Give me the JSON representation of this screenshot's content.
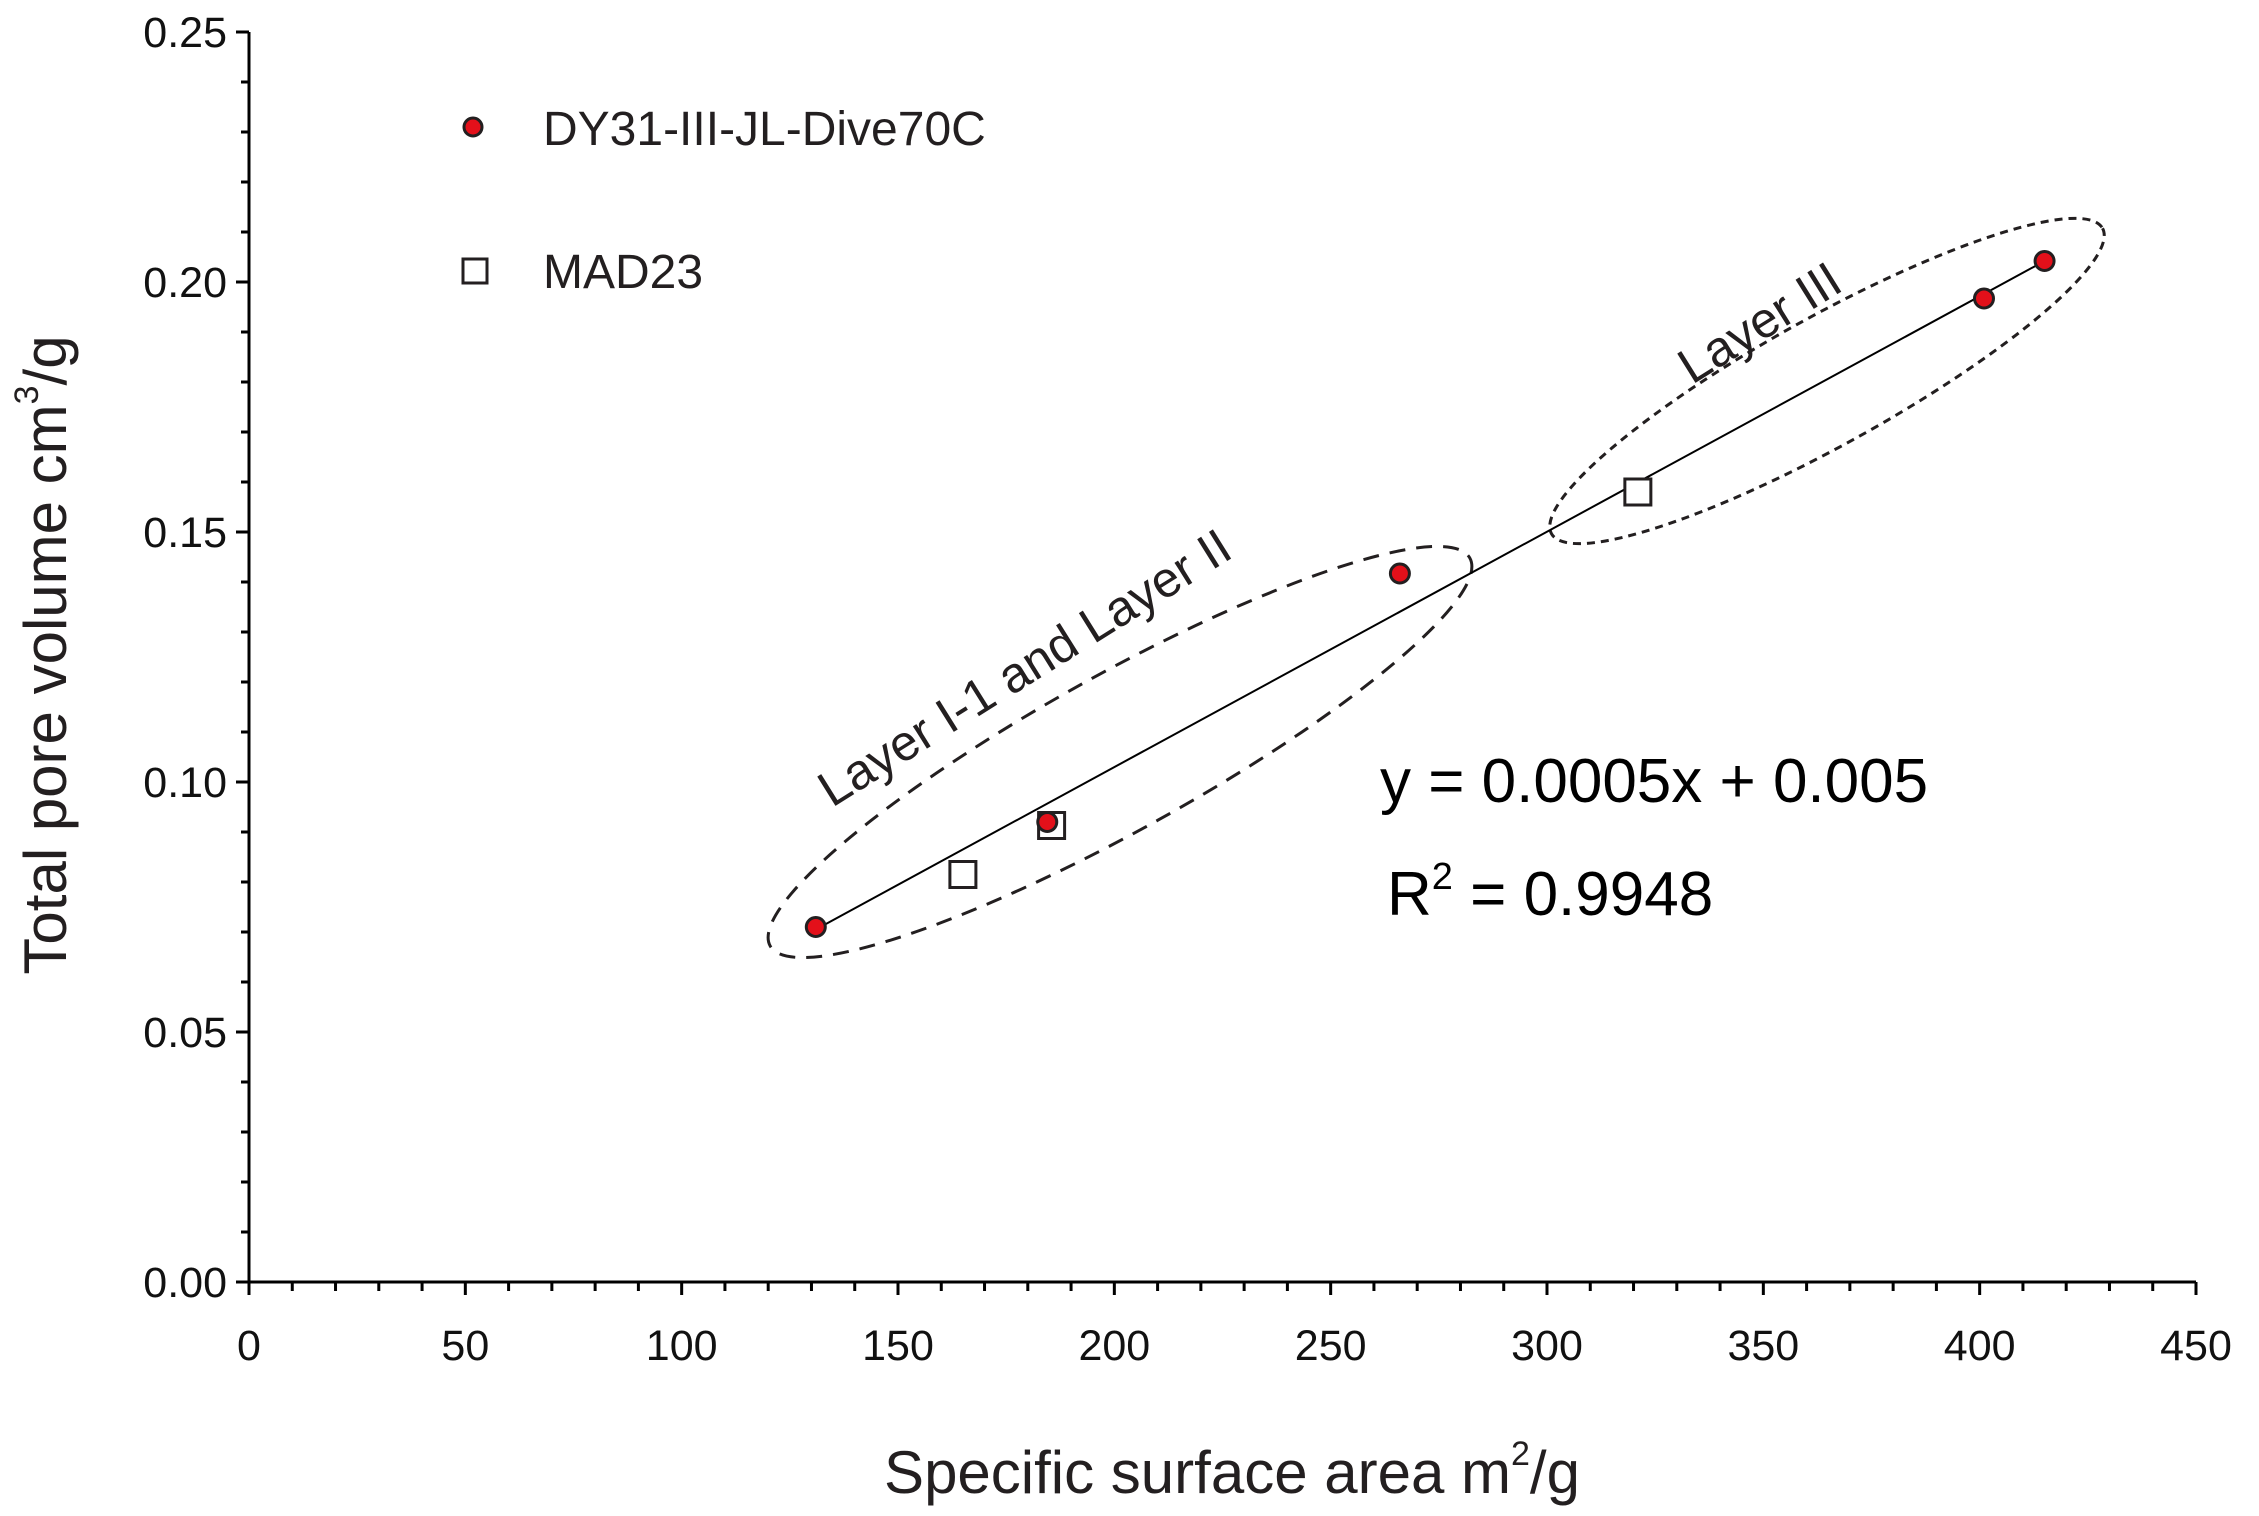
{
  "chart_data": {
    "type": "scatter",
    "title": "",
    "xlabel": "Specific surface area m",
    "xlabel_sup": "2",
    "xlabel_unit": "/g",
    "ylabel": "Total pore volume cm",
    "ylabel_sup": "3",
    "ylabel_unit": "/g",
    "xlim": [
      0,
      450
    ],
    "ylim": [
      0,
      0.25
    ],
    "xticks": [
      "0",
      "50",
      "100",
      "150",
      "200",
      "250",
      "300",
      "350",
      "400",
      "450"
    ],
    "yticks": [
      "0.00",
      "0.05",
      "0.10",
      "0.15",
      "0.20",
      "0.25"
    ],
    "grid": false,
    "legend_position": "top-left",
    "series": [
      {
        "name": "DY31-III-JL-Dive70C",
        "marker": "circle",
        "color": "#e3101a",
        "x": [
          131,
          184.5,
          266,
          401,
          415
        ],
        "y": [
          0.071,
          0.092,
          0.1417,
          0.1967,
          0.2042
        ]
      },
      {
        "name": "MAD23",
        "marker": "square",
        "color": "#ffffff",
        "x": [
          165,
          185.5,
          321
        ],
        "y": [
          0.0815,
          0.0913,
          0.158
        ]
      }
    ],
    "fit": {
      "x": [
        131,
        415
      ],
      "y": [
        0.0705,
        0.2042
      ],
      "equation": "y = 0.0005x + 0.005",
      "r2_label": "R",
      "r2_sup": "2",
      "r2_value": " = 0.9948"
    },
    "annotations": [
      {
        "text": "Layer I-1 and Layer II",
        "group": "ellipse-lower"
      },
      {
        "text": "Layer III",
        "group": "ellipse-upper"
      }
    ]
  }
}
